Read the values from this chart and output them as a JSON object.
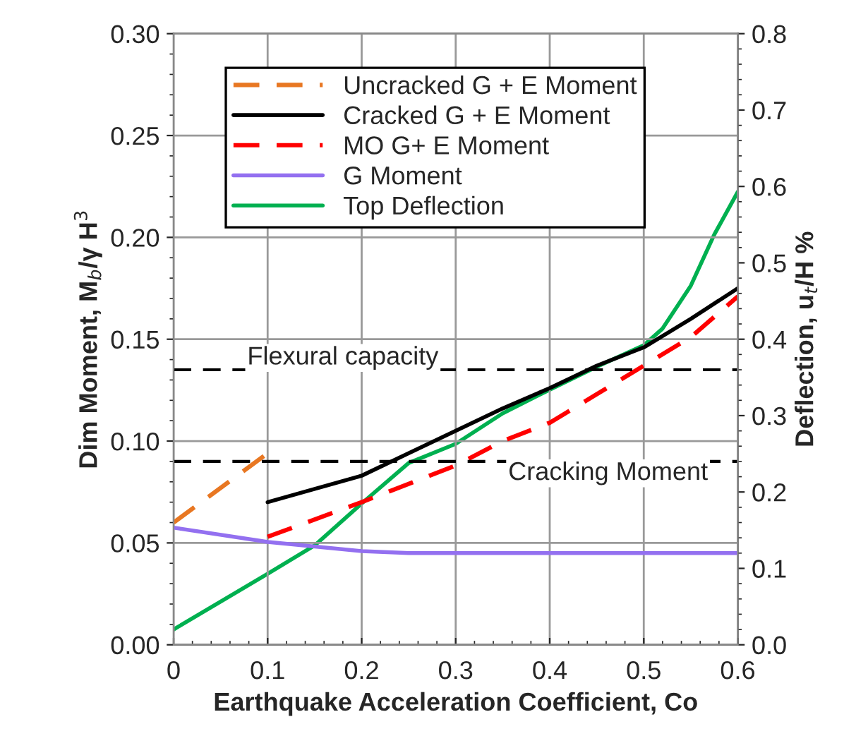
{
  "chart_data": {
    "type": "line",
    "xlabel": "Earthquake Acceleration Coefficient, Co",
    "ylabel": "Dim Moment, M$_{b}$/γ H$^{3}$",
    "y2label": "Deflection, u$_{t}$/H %",
    "xlim": [
      0,
      0.6
    ],
    "xticks": [
      0,
      0.1,
      0.2,
      0.3,
      0.4,
      0.5,
      0.6
    ],
    "ylim": [
      0,
      0.3
    ],
    "yticks": [
      {
        "value": 0,
        "label": "0.00"
      },
      {
        "value": 0.05,
        "label": "0.05"
      },
      {
        "value": 0.1,
        "label": "0.10"
      },
      {
        "value": 0.15,
        "label": "0.15"
      },
      {
        "value": 0.2,
        "label": "0.20"
      },
      {
        "value": 0.25,
        "label": "0.25"
      },
      {
        "value": 0.3,
        "label": "0.30"
      }
    ],
    "y2lim": [
      0,
      0.8
    ],
    "y2ticks": [
      {
        "value": 0,
        "label": "0.0"
      },
      0.1,
      0.2,
      0.3,
      0.4,
      0.5,
      0.6,
      0.7,
      0.8
    ],
    "grid": true,
    "legend": "top left",
    "marker": "none",
    "series": [
      {
        "name": "Uncracked G + E Moment",
        "color": "#e87722",
        "line_style": "dashed",
        "x": [
          0,
          0.1
        ],
        "values": [
          0.06,
          0.094
        ]
      },
      {
        "name": "Cracked G + E Moment",
        "color": "#000000",
        "line_style": "solid",
        "x": [
          0.1,
          0.15,
          0.2,
          0.25,
          0.3,
          0.35,
          0.4,
          0.45,
          0.5,
          0.55,
          0.6
        ],
        "values": [
          0.07,
          0.0765,
          0.083,
          0.094,
          0.105,
          0.116,
          0.126,
          0.137,
          0.146,
          0.16,
          0.175
        ]
      },
      {
        "name": "MO G+ E Moment",
        "color": "#ff0000",
        "line_style": "dashed",
        "x": [
          0.1,
          0.2,
          0.3,
          0.35,
          0.4,
          0.45,
          0.5,
          0.55,
          0.6
        ],
        "values": [
          0.053,
          0.07,
          0.088,
          0.1,
          0.109,
          0.123,
          0.137,
          0.151,
          0.171
        ]
      },
      {
        "name": "G Moment",
        "color": "#9370f0",
        "line_style": "solid",
        "x": [
          0,
          0.1,
          0.2,
          0.25,
          0.3,
          0.4,
          0.5,
          0.6
        ],
        "values": [
          0.0575,
          0.0505,
          0.046,
          0.045,
          0.045,
          0.045,
          0.045,
          0.045
        ]
      },
      {
        "name": "Top Deflection",
        "color": "#00b050",
        "line_style": "solid",
        "axis": "y2",
        "x": [
          0,
          0.1,
          0.15,
          0.2,
          0.25,
          0.3,
          0.35,
          0.4,
          0.45,
          0.5,
          0.52,
          0.55,
          0.575,
          0.6
        ],
        "values": [
          0.02,
          0.093,
          0.13,
          0.185,
          0.238,
          0.263,
          0.303,
          0.334,
          0.364,
          0.392,
          0.414,
          0.47,
          0.537,
          0.593
        ]
      }
    ],
    "ref_lines": [
      {
        "axis": "y",
        "value": 0.135,
        "label": "Flexural capacity",
        "color": "#000000",
        "line_style": "dashed"
      },
      {
        "axis": "y",
        "value": 0.09,
        "label": "Cracking Moment",
        "color": "#000000",
        "line_style": "dashed"
      }
    ]
  }
}
